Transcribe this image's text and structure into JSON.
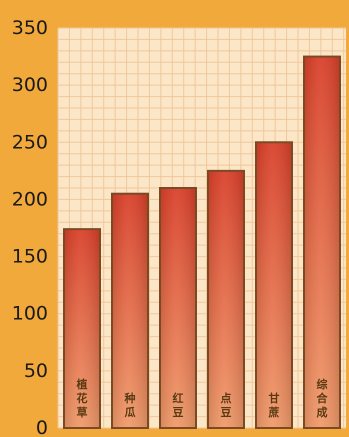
{
  "chart_data": {
    "type": "bar",
    "title": "",
    "xlabel": "",
    "ylabel": "",
    "categories": [
      "植花草",
      "种瓜",
      "红豆",
      "点豆",
      "甘蔗",
      "综合成"
    ],
    "values": [
      174,
      205,
      210,
      225,
      250,
      325
    ],
    "ylim": [
      0,
      350
    ],
    "yticks": [
      0,
      50,
      100,
      150,
      200,
      250,
      300,
      350
    ],
    "grid": true,
    "legend": "none",
    "colors": {
      "background": "#f2a93b",
      "plot_area": "#fbe6c8",
      "grid": "#f0c79a",
      "bar_top": "#d9402a",
      "bar_bottom": "#f09a6a",
      "bar_border": "#7a4a25",
      "tick_text": "#1a1a1a",
      "category_text": "#5a3a12"
    }
  }
}
